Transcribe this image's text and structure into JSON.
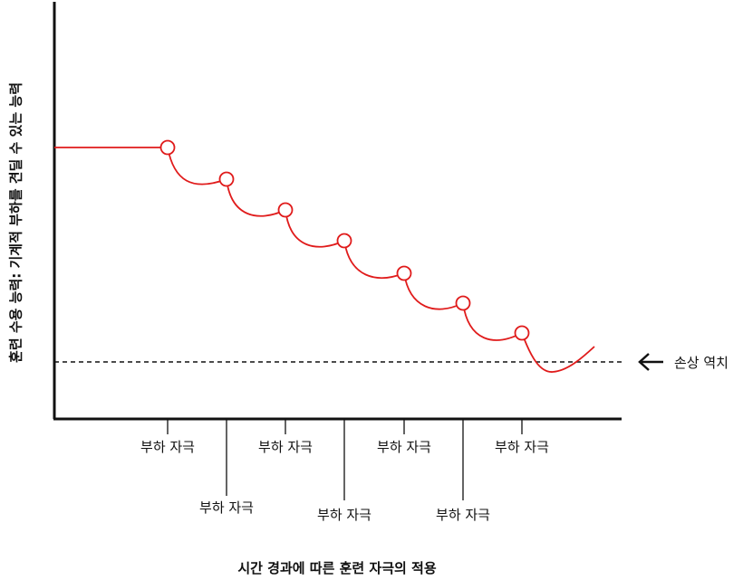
{
  "y_axis_label": "훈련 수용 능력: 기계적 부하를 견딜 수 있는 능력",
  "x_axis_label": "시간 경과에 따른 훈련 자극의 적용",
  "threshold_label": "손상 역치",
  "stimulus_label": "부하 자극",
  "stimuli": [
    {
      "label": "부하 자극",
      "row": "upper"
    },
    {
      "label": "부하 자극",
      "row": "lower"
    },
    {
      "label": "부하 자극",
      "row": "upper"
    },
    {
      "label": "부하 자극",
      "row": "lower"
    },
    {
      "label": "부하 자극",
      "row": "upper"
    },
    {
      "label": "부하 자극",
      "row": "lower"
    },
    {
      "label": "부하 자극",
      "row": "upper"
    }
  ],
  "colors": {
    "curve": "#e01b1b",
    "axis": "#111111",
    "threshold": "#111111"
  }
}
